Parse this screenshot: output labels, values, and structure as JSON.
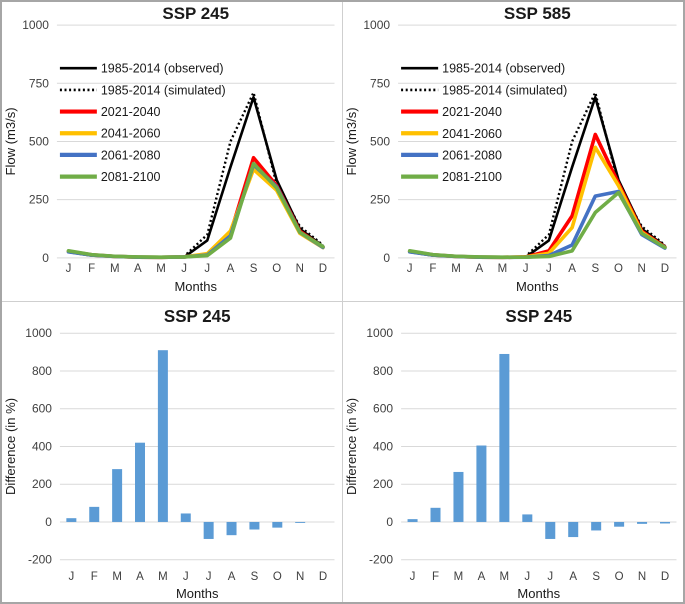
{
  "page": {
    "background": "#ffffff",
    "frame_border_color": "#a6a6a6",
    "divider_color": "#cfcfcf",
    "gridline_color": "#d9d9d9",
    "tick_label_color": "#404040",
    "text_color": "#1a1a1a"
  },
  "months": [
    "J",
    "F",
    "M",
    "A",
    "M",
    "J",
    "J",
    "A",
    "S",
    "O",
    "N",
    "D"
  ],
  "chart_data": [
    {
      "id": "flow-ssp245",
      "type": "line",
      "title": "SSP 245",
      "xlabel": "Months",
      "ylabel": "Flow (m3/s)",
      "ylim": [
        0,
        1000
      ],
      "yticks": [
        0,
        250,
        500,
        750,
        1000
      ],
      "grid": true,
      "legend_position": "upper-left-inside",
      "categories": [
        "J",
        "F",
        "M",
        "A",
        "M",
        "J",
        "J",
        "A",
        "S",
        "O",
        "N",
        "D"
      ],
      "series": [
        {
          "name": "1985-2014 (observed)",
          "color": "#000000",
          "style": "solid",
          "width": 2.6,
          "values": [
            25,
            10,
            5,
            3,
            2,
            3,
            75,
            390,
            690,
            335,
            125,
            50
          ]
        },
        {
          "name": "1985-2014 (simulated)",
          "color": "#000000",
          "style": "dotted",
          "width": 2.4,
          "values": [
            25,
            10,
            5,
            3,
            2,
            6,
            100,
            500,
            710,
            315,
            135,
            55
          ]
        },
        {
          "name": "2021-2040",
          "color": "#ff0000",
          "style": "solid",
          "width": 3.6,
          "values": [
            28,
            13,
            6,
            3,
            2,
            4,
            15,
            105,
            430,
            310,
            115,
            46
          ]
        },
        {
          "name": "2041-2060",
          "color": "#ffc000",
          "style": "solid",
          "width": 3.6,
          "values": [
            27,
            12,
            6,
            3,
            2,
            4,
            18,
            115,
            380,
            290,
            105,
            44
          ]
        },
        {
          "name": "2061-2080",
          "color": "#4472c4",
          "style": "solid",
          "width": 3.6,
          "values": [
            26,
            12,
            6,
            3,
            2,
            4,
            12,
            95,
            400,
            305,
            110,
            45
          ]
        },
        {
          "name": "2081-2100",
          "color": "#70ad47",
          "style": "solid",
          "width": 3.6,
          "values": [
            30,
            14,
            7,
            4,
            3,
            4,
            10,
            85,
            405,
            300,
            110,
            48
          ]
        }
      ]
    },
    {
      "id": "flow-ssp585",
      "type": "line",
      "title": "SSP 585",
      "xlabel": "Months",
      "ylabel": "Flow (m3/s)",
      "ylim": [
        0,
        1000
      ],
      "yticks": [
        0,
        250,
        500,
        750,
        1000
      ],
      "grid": true,
      "legend_position": "upper-left-inside",
      "categories": [
        "J",
        "F",
        "M",
        "A",
        "M",
        "J",
        "J",
        "A",
        "S",
        "O",
        "N",
        "D"
      ],
      "series": [
        {
          "name": "1985-2014 (observed)",
          "color": "#000000",
          "style": "solid",
          "width": 2.6,
          "values": [
            25,
            10,
            5,
            3,
            2,
            3,
            75,
            390,
            690,
            335,
            125,
            50
          ]
        },
        {
          "name": "1985-2014 (simulated)",
          "color": "#000000",
          "style": "dotted",
          "width": 2.4,
          "values": [
            25,
            10,
            5,
            3,
            2,
            6,
            100,
            500,
            710,
            315,
            135,
            55
          ]
        },
        {
          "name": "2021-2040",
          "color": "#ff0000",
          "style": "solid",
          "width": 3.6,
          "values": [
            28,
            13,
            6,
            3,
            2,
            4,
            30,
            180,
            530,
            320,
            115,
            46
          ]
        },
        {
          "name": "2041-2060",
          "color": "#ffc000",
          "style": "solid",
          "width": 3.6,
          "values": [
            27,
            12,
            6,
            3,
            2,
            4,
            20,
            130,
            475,
            310,
            110,
            44
          ]
        },
        {
          "name": "2061-2080",
          "color": "#4472c4",
          "style": "solid",
          "width": 3.6,
          "values": [
            26,
            12,
            6,
            3,
            2,
            3,
            10,
            55,
            265,
            285,
            100,
            42
          ]
        },
        {
          "name": "2081-2100",
          "color": "#70ad47",
          "style": "solid",
          "width": 3.6,
          "values": [
            30,
            14,
            7,
            4,
            3,
            3,
            6,
            30,
            195,
            280,
            105,
            45
          ]
        }
      ]
    },
    {
      "id": "diff-ssp245-left",
      "type": "bar",
      "title": "SSP 245",
      "xlabel": "Months",
      "ylabel": "Difference (in %)",
      "ylim": [
        -200,
        1000
      ],
      "yticks": [
        -200,
        0,
        200,
        400,
        600,
        800,
        1000
      ],
      "grid": true,
      "bar_color": "#5b9bd5",
      "categories": [
        "J",
        "F",
        "M",
        "A",
        "M",
        "J",
        "J",
        "A",
        "S",
        "O",
        "N",
        "D"
      ],
      "values": [
        20,
        80,
        280,
        420,
        910,
        45,
        -90,
        -70,
        -40,
        -30,
        -5,
        0
      ]
    },
    {
      "id": "diff-ssp245-right",
      "type": "bar",
      "title": "SSP 245",
      "xlabel": "Months",
      "ylabel": "Difference (in %)",
      "ylim": [
        -200,
        1000
      ],
      "yticks": [
        -200,
        0,
        200,
        400,
        600,
        800,
        1000
      ],
      "grid": true,
      "bar_color": "#5b9bd5",
      "categories": [
        "J",
        "F",
        "M",
        "A",
        "M",
        "J",
        "J",
        "A",
        "S",
        "O",
        "N",
        "D"
      ],
      "values": [
        15,
        75,
        265,
        405,
        890,
        40,
        -90,
        -80,
        -45,
        -25,
        -10,
        -8
      ]
    }
  ]
}
